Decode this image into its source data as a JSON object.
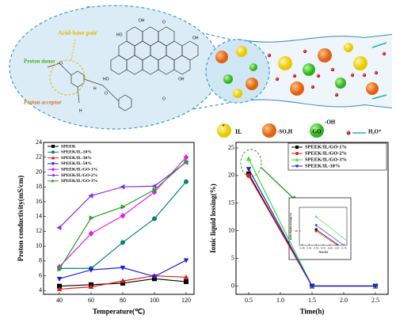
{
  "diagram": {
    "acid_base_pair": "Acid-base pair",
    "proton_donor": "Proton donor",
    "proton_acceptor": "Proton acceptor",
    "molecule_labels": [
      "HO",
      "OH",
      "O",
      "OH",
      "HO",
      "O",
      "H",
      "O",
      "H",
      "O",
      "OH"
    ],
    "legend": {
      "il_plus": "+",
      "il": "IL",
      "so3h": "-SO₃H",
      "go": "GO",
      "oh": "-OH",
      "h3o": "H₃O⁺"
    }
  },
  "chart_data": [
    {
      "type": "line",
      "xlabel": "Temperature(℃)",
      "ylabel": "Proton conductivity(mS/cm)",
      "x": [
        40,
        60,
        80,
        100,
        120
      ],
      "xlim": [
        30,
        125
      ],
      "xticks": [
        40,
        60,
        80,
        100,
        120
      ],
      "ylim": [
        3.5,
        24
      ],
      "yticks": [
        4,
        6,
        8,
        10,
        12,
        14,
        16,
        18,
        20,
        22,
        24
      ],
      "legend": "upper left",
      "series": [
        {
          "name": "SPEEK",
          "color": "#000000",
          "marker": "square",
          "values": [
            4.6,
            4.8,
            5.0,
            5.6,
            5.2
          ]
        },
        {
          "name": "SPEEK/IL-10%",
          "color": "#008080",
          "marker": "circle",
          "values": [
            7.0,
            7.0,
            10.5,
            13.7,
            18.7
          ]
        },
        {
          "name": "SPEEK/IL-30%",
          "color": "#e41a1c",
          "marker": "triangle-up",
          "values": [
            4.2,
            4.5,
            5.3,
            6.0,
            5.8
          ]
        },
        {
          "name": "SPEEK/IL-50%",
          "color": "#1f1fe0",
          "marker": "triangle-down",
          "values": [
            5.6,
            6.8,
            7.1,
            5.9,
            8.1
          ]
        },
        {
          "name": "SPEEK/IL/GO-1%",
          "color": "#e020e0",
          "marker": "diamond",
          "values": [
            7.2,
            11.7,
            14.1,
            17.3,
            22.0
          ]
        },
        {
          "name": "SPEEK/IL/GO-2%",
          "color": "#8a2be2",
          "marker": "triangle-left",
          "values": [
            12.5,
            16.8,
            18.0,
            18.1,
            21.3
          ]
        },
        {
          "name": "SPEEK/IL/GO-3%",
          "color": "#2e9e2e",
          "marker": "triangle-right",
          "values": [
            6.9,
            13.8,
            15.3,
            17.6,
            21.4
          ]
        }
      ]
    },
    {
      "type": "line",
      "xlabel": "Time(h)",
      "ylabel": "Ionic liquid lossing(%)",
      "x": [
        0.5,
        1.5,
        2.5
      ],
      "xlim": [
        0.3,
        2.7
      ],
      "xticks": [
        0.5,
        {
          "value": 1.0,
          "label": "1.0"
        },
        1.5,
        {
          "value": 2.0,
          "label": "2.0"
        },
        2.5
      ],
      "ylim": [
        -1.5,
        26
      ],
      "yticks": [
        0,
        5,
        10,
        15,
        20,
        25
      ],
      "legend": "upper right",
      "series": [
        {
          "name": "SPEEK/IL/GO-1%",
          "color": "#000000",
          "marker": "square",
          "values": [
            20.3,
            0,
            0
          ]
        },
        {
          "name": "SPEEK/IL/GO-2%",
          "color": "#e41a1c",
          "marker": "circle",
          "values": [
            20.0,
            0,
            0
          ]
        },
        {
          "name": "SPEEK/IL/GO-3%",
          "color": "#33e033",
          "marker": "triangle-up",
          "values": [
            23.0,
            0,
            0
          ]
        },
        {
          "name": "SPEEK/IL-10%",
          "color": "#1f1fe0",
          "marker": "triangle-down",
          "values": [
            21.2,
            0,
            0
          ]
        }
      ]
    },
    {
      "type": "inset",
      "xlabel": "Time(h)",
      "ylabel": "Ionic liquid lossing(%)",
      "xlim": [
        0.38,
        0.72
      ],
      "xticks": [
        {
          "value": 0.4,
          "label": "0.40"
        },
        0.45,
        {
          "value": 0.5,
          "label": "0.50"
        },
        0.55,
        {
          "value": 0.6,
          "label": "0.60"
        },
        0.65,
        {
          "value": 0.7,
          "label": "0.70"
        }
      ],
      "ylim": [
        17,
        25
      ],
      "yticks": [
        20
      ]
    }
  ]
}
